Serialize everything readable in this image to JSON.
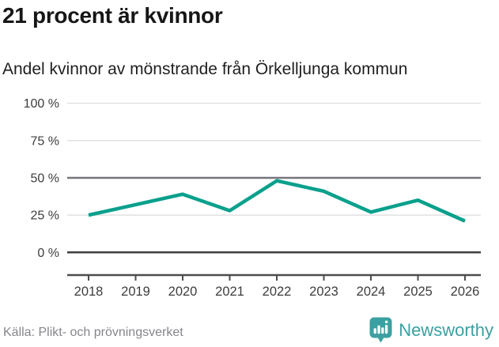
{
  "header": {
    "title": "21 procent är kvinnor",
    "subtitle": "Andel kvinnor av mönstrande från Örkelljunga kommun"
  },
  "chart_data": {
    "type": "line",
    "title": "21 procent är kvinnor",
    "subtitle": "Andel kvinnor av mönstrande från Örkelljunga kommun",
    "categories": [
      "2018",
      "2019",
      "2020",
      "2021",
      "2022",
      "2023",
      "2024",
      "2025",
      "2026"
    ],
    "series": [
      {
        "name": "Andel kvinnor av mönstrande",
        "values": [
          25,
          32,
          39,
          28,
          48,
          41,
          27,
          35,
          21
        ],
        "unit": "%"
      }
    ],
    "xlabel": "",
    "ylabel": "",
    "ylim": [
      0,
      100
    ],
    "yticks": [
      0,
      25,
      50,
      75,
      100
    ],
    "ytick_labels": [
      "0 %",
      "25 %",
      "50 %",
      "75 %",
      "100 %"
    ],
    "grid": true,
    "legend": "none",
    "emphasized_gridlines": [
      50,
      0
    ]
  },
  "footer": {
    "source": "Källa: Plikt- och prövningsverket",
    "brand": "Newsworthy"
  },
  "colors": {
    "line": "#0aa08c",
    "brand_teal": "#3ba0a1",
    "axis_text": "#3d3d3d",
    "grid_light": "#e1e1e3",
    "grid_mid": "#75757b",
    "grid_zero": "#3f3f3f",
    "axis_line": "#4d4d4d",
    "source_text": "#86868c"
  }
}
